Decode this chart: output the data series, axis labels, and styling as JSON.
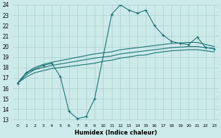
{
  "xlabel": "Humidex (Indice chaleur)",
  "xlim": [
    -0.5,
    23.5
  ],
  "ylim": [
    13,
    24
  ],
  "yticks": [
    13,
    14,
    15,
    16,
    17,
    18,
    19,
    20,
    21,
    22,
    23,
    24
  ],
  "xticks": [
    0,
    1,
    2,
    3,
    4,
    5,
    6,
    7,
    8,
    9,
    10,
    11,
    12,
    13,
    14,
    15,
    16,
    17,
    18,
    19,
    20,
    21,
    22,
    23
  ],
  "background_color": "#cceaea",
  "grid_color": "#aacccc",
  "line_color": "#1a7070",
  "line1_x": [
    0,
    1,
    3,
    4,
    5,
    6,
    7,
    8,
    9,
    11,
    12,
    13,
    14,
    15,
    16,
    17,
    18,
    19,
    20,
    21,
    22,
    23
  ],
  "line1_y": [
    16.5,
    17.5,
    18.2,
    18.4,
    17.1,
    13.8,
    13.1,
    13.3,
    15.0,
    23.1,
    24.0,
    23.5,
    23.2,
    23.5,
    22.0,
    21.1,
    20.5,
    20.3,
    20.2,
    20.9,
    19.9,
    19.8
  ],
  "line2_x": [
    0,
    1,
    2,
    3,
    4,
    9,
    10,
    11,
    12,
    13,
    14,
    15,
    16,
    17,
    18,
    19,
    20,
    21,
    22,
    23
  ],
  "line2_y": [
    16.5,
    17.5,
    18.0,
    18.3,
    18.5,
    19.3,
    19.4,
    19.5,
    19.7,
    19.8,
    19.9,
    20.0,
    20.1,
    20.2,
    20.3,
    20.35,
    20.4,
    20.4,
    20.2,
    20.0
  ],
  "line3_x": [
    0,
    1,
    2,
    3,
    4,
    9,
    10,
    11,
    12,
    13,
    14,
    15,
    16,
    17,
    18,
    19,
    20,
    21,
    22,
    23
  ],
  "line3_y": [
    16.5,
    17.3,
    17.8,
    18.0,
    18.2,
    18.9,
    19.0,
    19.1,
    19.3,
    19.4,
    19.5,
    19.6,
    19.7,
    19.8,
    19.9,
    19.95,
    20.0,
    20.0,
    19.9,
    19.8
  ],
  "line4_x": [
    0,
    1,
    2,
    3,
    4,
    9,
    10,
    11,
    12,
    13,
    14,
    15,
    16,
    17,
    18,
    19,
    20,
    21,
    22,
    23
  ],
  "line4_y": [
    16.5,
    17.1,
    17.5,
    17.7,
    17.9,
    18.4,
    18.6,
    18.7,
    18.9,
    19.0,
    19.15,
    19.2,
    19.4,
    19.5,
    19.6,
    19.65,
    19.7,
    19.7,
    19.6,
    19.5
  ]
}
